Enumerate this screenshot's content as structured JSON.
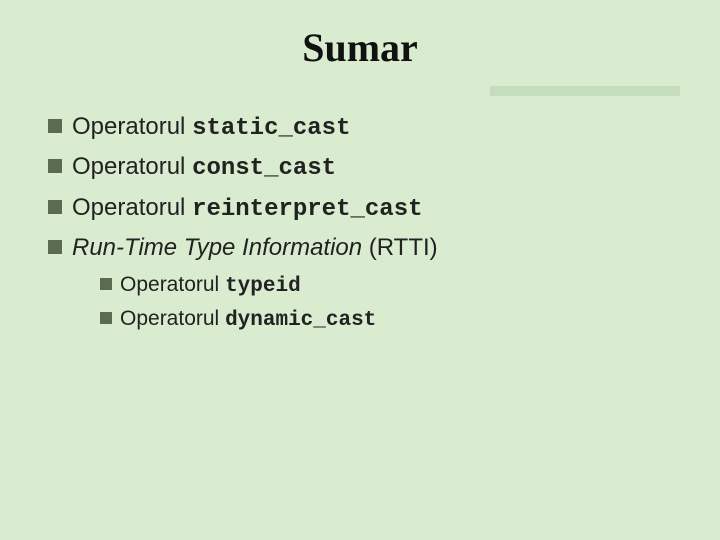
{
  "slide": {
    "title": "Sumar",
    "background_color": "#d9ecd0",
    "deco_color": "#c6ddbd",
    "bullet_color": "#5a6b4f",
    "title_font": "Times New Roman",
    "title_fontsize": 40,
    "body_fontsize_level1": 24,
    "body_fontsize_level2": 21,
    "items": [
      {
        "prefix": "Operatorul ",
        "code": "static_cast",
        "suffix": ""
      },
      {
        "prefix": "Operatorul ",
        "code": "const_cast",
        "suffix": ""
      },
      {
        "prefix": "Operatorul ",
        "code": "reinterpret_cast",
        "suffix": ""
      },
      {
        "italic": "Run-Time Type Information",
        "suffix": " (RTTI)"
      }
    ],
    "subitems": [
      {
        "prefix": "Operatorul ",
        "code": "typeid"
      },
      {
        "prefix": "Operatorul ",
        "code": "dynamic_cast"
      }
    ]
  }
}
